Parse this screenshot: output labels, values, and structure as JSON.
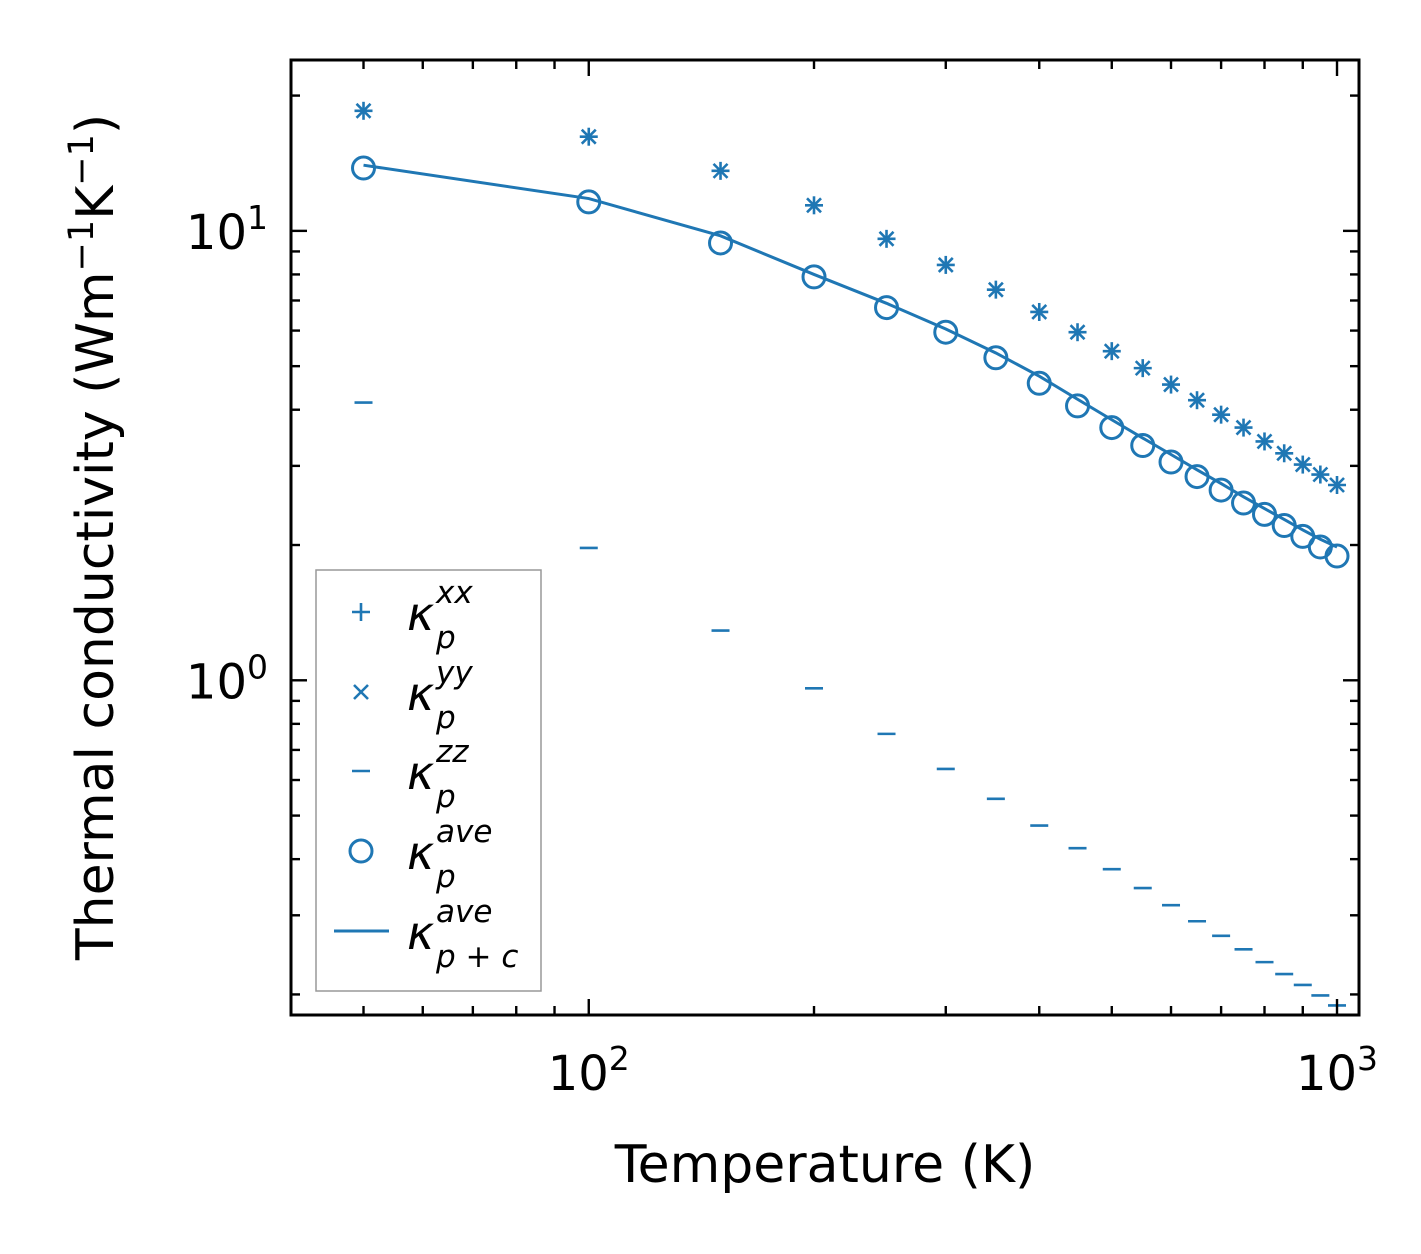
{
  "chart_data": {
    "type": "scatter",
    "title": "",
    "xlabel": "Temperature (K)",
    "ylabel_parts": {
      "base": "Thermal conductivity (Wm",
      "exp1": "−1",
      "mid": "K",
      "exp2": "−1",
      "end": ")"
    },
    "xscale": "log",
    "yscale": "log",
    "xlim": [
      40,
      1070
    ],
    "ylim": [
      0.18,
      24
    ],
    "xticks": [
      {
        "value": 100,
        "base": "10",
        "exp": "2"
      },
      {
        "value": 1000,
        "base": "10",
        "exp": "3"
      }
    ],
    "yticks": [
      {
        "value": 1,
        "base": "10",
        "exp": "0"
      },
      {
        "value": 10,
        "base": "10",
        "exp": "1"
      }
    ],
    "x": [
      50,
      100,
      150,
      200,
      250,
      300,
      350,
      400,
      450,
      500,
      550,
      600,
      650,
      700,
      750,
      800,
      850,
      900,
      950,
      1000
    ],
    "series": [
      {
        "name": "kxx",
        "label": {
          "main": "κ",
          "sub": "p",
          "sup": "xx"
        },
        "marker": "plus",
        "values": [
          18.5,
          16.2,
          13.6,
          11.4,
          9.6,
          8.4,
          7.4,
          6.6,
          5.95,
          5.4,
          4.95,
          4.55,
          4.2,
          3.9,
          3.65,
          3.4,
          3.2,
          3.02,
          2.87,
          2.72
        ]
      },
      {
        "name": "kyy",
        "label": {
          "main": "κ",
          "sub": "p",
          "sup": "yy"
        },
        "marker": "x",
        "values": [
          18.5,
          16.2,
          13.6,
          11.4,
          9.6,
          8.4,
          7.4,
          6.6,
          5.95,
          5.4,
          4.95,
          4.55,
          4.2,
          3.9,
          3.65,
          3.4,
          3.2,
          3.02,
          2.87,
          2.72
        ]
      },
      {
        "name": "kzz",
        "label": {
          "main": "κ",
          "sub": "p",
          "sup": "zz"
        },
        "marker": "hline",
        "values": [
          4.15,
          1.97,
          1.29,
          0.96,
          0.76,
          0.635,
          0.545,
          0.475,
          0.423,
          0.38,
          0.345,
          0.316,
          0.291,
          0.27,
          0.252,
          0.236,
          0.222,
          0.21,
          0.199,
          0.189
        ]
      },
      {
        "name": "kave",
        "label": {
          "main": "κ",
          "sub": "p",
          "sup": "ave"
        },
        "marker": "circle",
        "values": [
          13.8,
          11.6,
          9.4,
          7.9,
          6.75,
          5.95,
          5.22,
          4.58,
          4.08,
          3.65,
          3.33,
          3.06,
          2.84,
          2.65,
          2.48,
          2.34,
          2.21,
          2.09,
          1.98,
          1.89
        ]
      },
      {
        "name": "kave_pc",
        "label": {
          "main": "κ",
          "sub": "p + c",
          "sup": "ave"
        },
        "marker": "line",
        "values": [
          14.0,
          11.8,
          9.75,
          8.0,
          6.9,
          6.05,
          5.35,
          4.75,
          4.22,
          3.8,
          3.46,
          3.18,
          2.94,
          2.74,
          2.56,
          2.41,
          2.28,
          2.16,
          2.06,
          1.98
        ]
      }
    ],
    "color": "#1f77b4",
    "legend_position": "bottom-left",
    "grid": false
  }
}
